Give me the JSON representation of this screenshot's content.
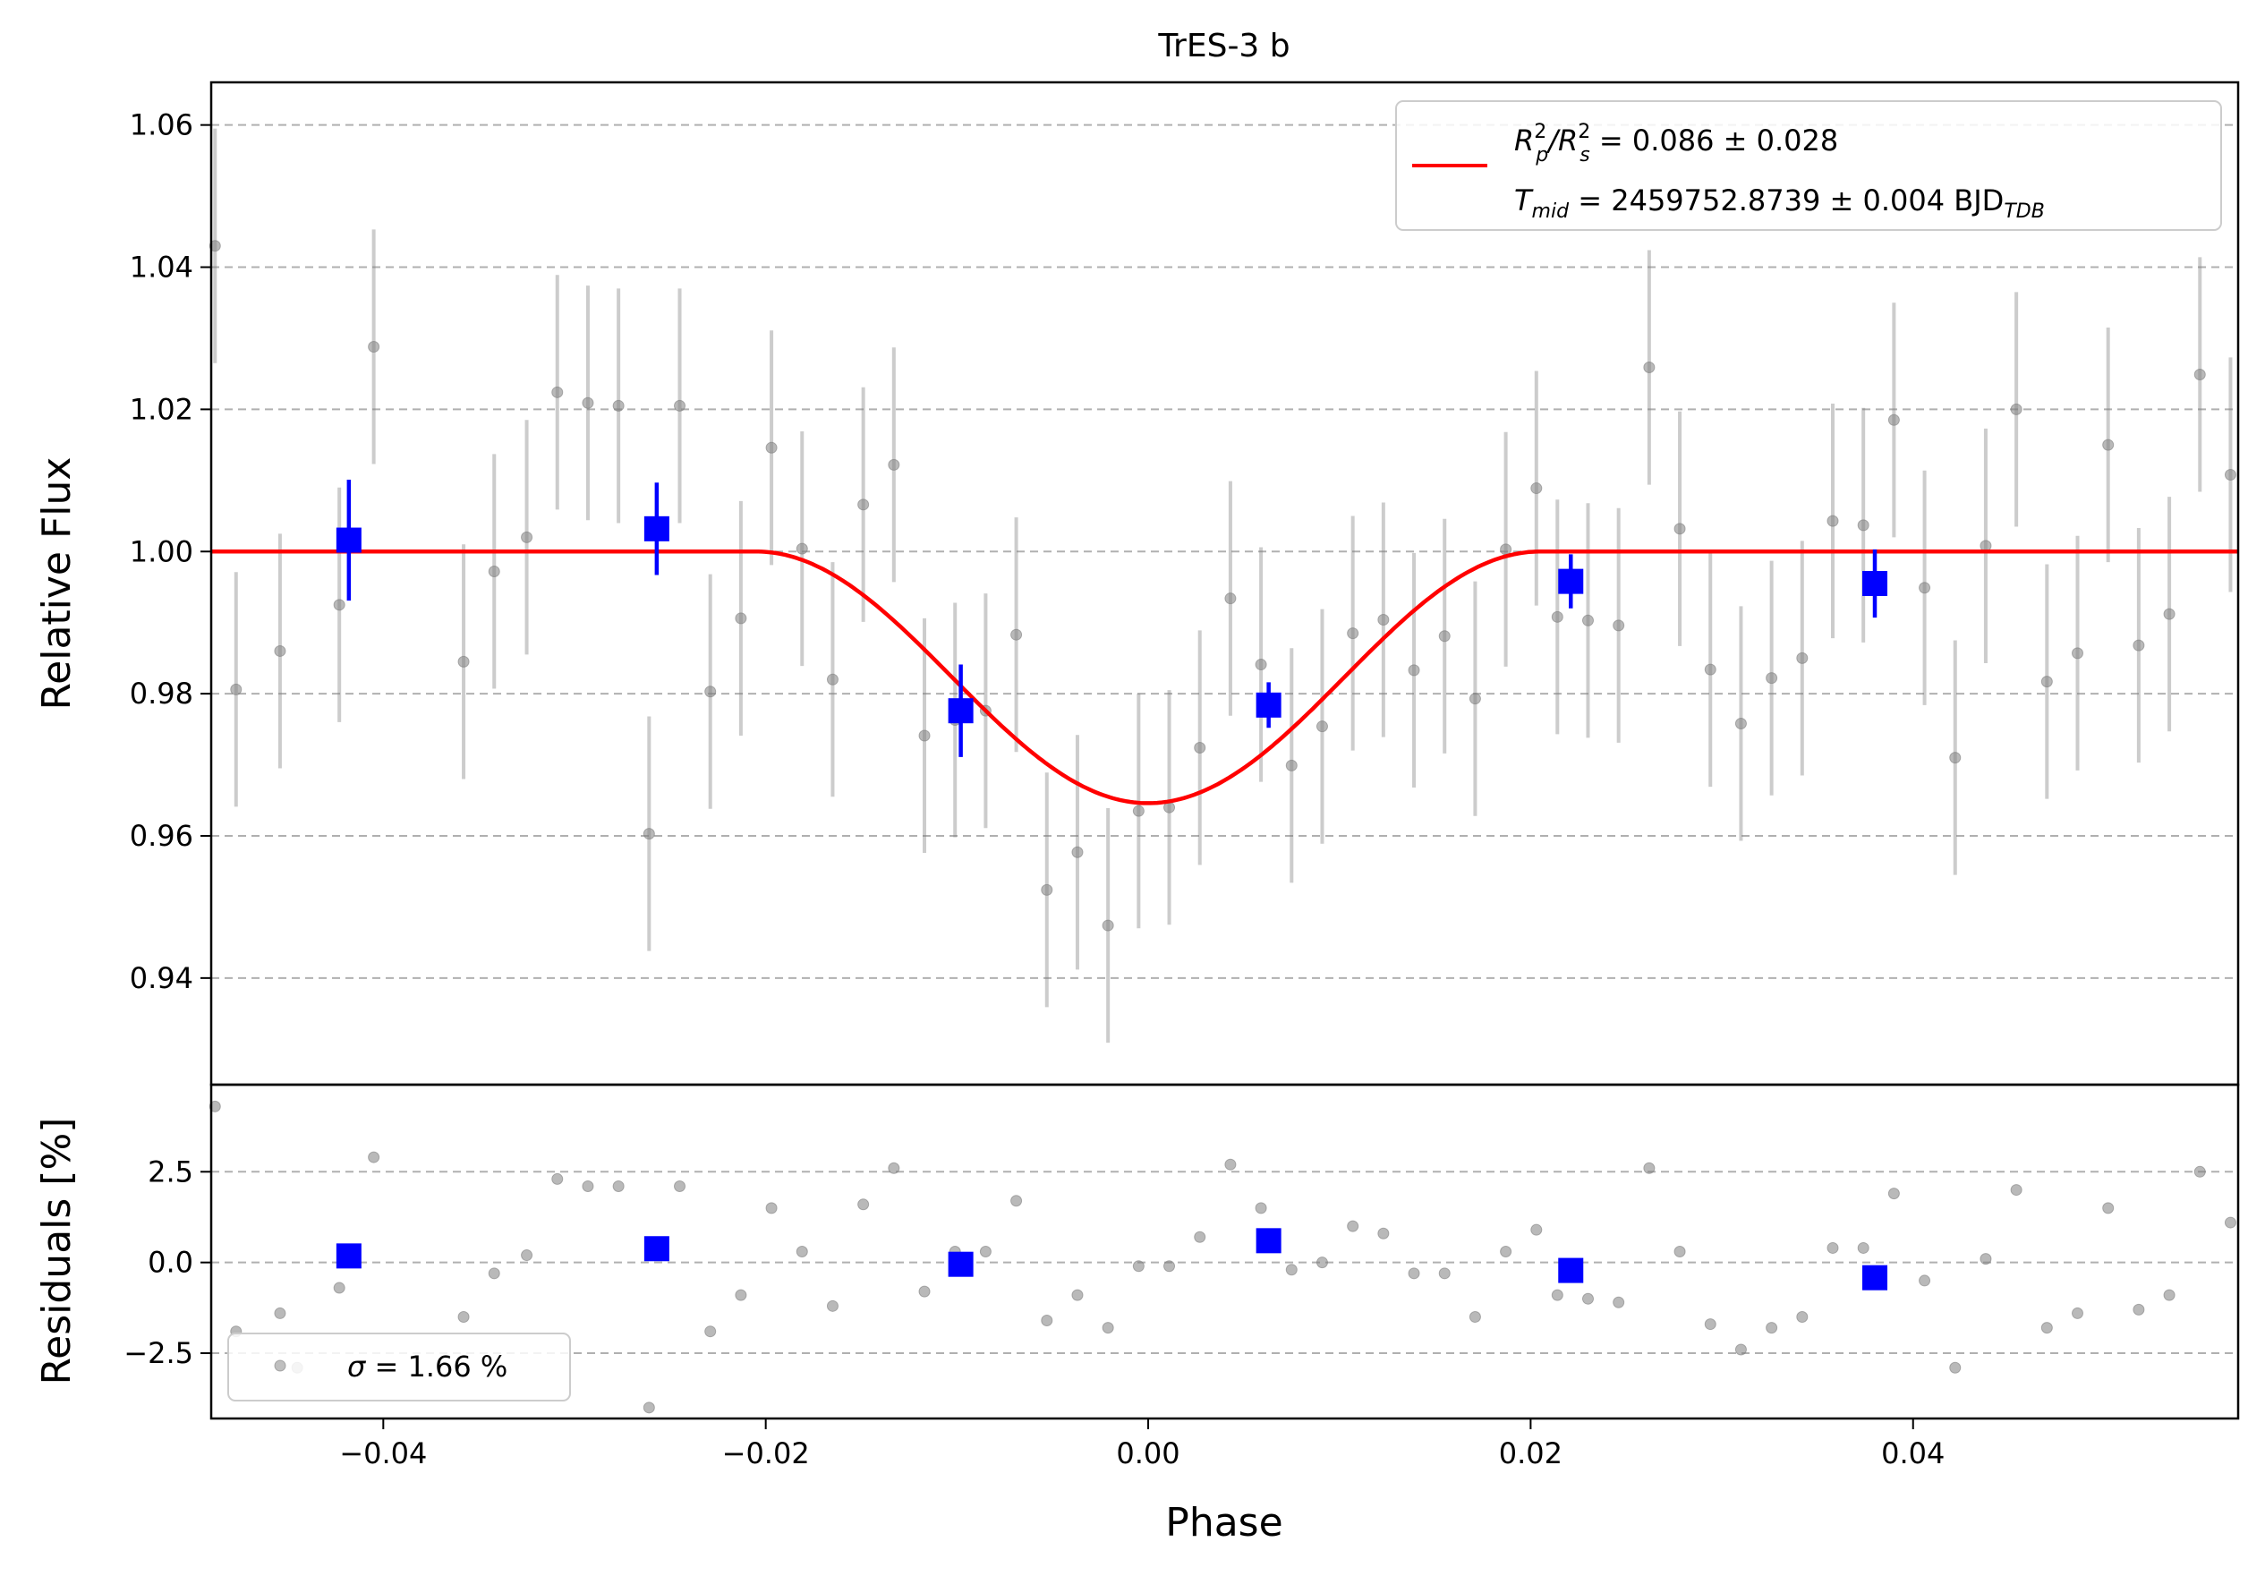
{
  "chart_data": {
    "type": "scatter",
    "title": "TrES-3 b",
    "top": {
      "ylabel": "Relative Flux",
      "ylim": [
        0.925,
        1.066
      ],
      "yticks": [
        0.94,
        0.96,
        0.98,
        1.0,
        1.02,
        1.04,
        1.06
      ],
      "ytick_labels": [
        "0.94",
        "0.96",
        "0.98",
        "1.00",
        "1.02",
        "1.04",
        "1.06"
      ],
      "grid": "horizontal dashed",
      "legend_position": "top-right",
      "legend": {
        "line1_main": "R",
        "line1_a_sup": "2",
        "line1_a_sub": "p",
        "line1_mid": "/R",
        "line1_b_sup": "2",
        "line1_b_sub": "s",
        "line1_value": " = 0.086 ± 0.028",
        "line2_main": "T",
        "line2_sub": "mid",
        "line2_value": " = 2459752.8739 ± 0.004 BJD",
        "line2_unit_sub": "TDB"
      },
      "model_curve": {
        "color": "#ff0000",
        "depth": 0.0354,
        "x": [
          -0.049,
          -0.0205,
          -0.018,
          -0.015,
          -0.012,
          -0.009,
          -0.006,
          -0.003,
          0.0,
          0.003,
          0.006,
          0.009,
          0.012,
          0.015,
          0.018,
          0.0205,
          0.057
        ],
        "y": [
          1.0,
          1.0,
          0.9962,
          0.9888,
          0.9813,
          0.9745,
          0.9693,
          0.9659,
          0.9646,
          0.9659,
          0.9693,
          0.9745,
          0.9813,
          0.9888,
          0.9962,
          1.0,
          1.0
        ]
      },
      "raw_points": {
        "color": "#808080",
        "error": 0.0165,
        "x": [
          -0.0488,
          -0.0477,
          -0.0454,
          -0.0423,
          -0.0405,
          -0.0358,
          -0.0342,
          -0.0325,
          -0.0309,
          -0.0293,
          -0.0277,
          -0.0261,
          -0.0245,
          -0.0229,
          -0.0213,
          -0.0197,
          -0.0181,
          -0.0165,
          -0.0149,
          -0.0133,
          -0.0117,
          -0.0101,
          -0.0085,
          -0.0069,
          -0.0053,
          -0.0037,
          -0.0021,
          -0.0005,
          0.0011,
          0.0027,
          0.0043,
          0.0059,
          0.0075,
          0.0091,
          0.0107,
          0.0123,
          0.0139,
          0.0155,
          0.0171,
          0.0187,
          0.0203,
          0.0214,
          0.023,
          0.0246,
          0.0262,
          0.0278,
          0.0294,
          0.031,
          0.0326,
          0.0342,
          0.0358,
          0.0374,
          0.039,
          0.0406,
          0.0422,
          0.0438,
          0.0454,
          0.047,
          0.0486,
          0.0502,
          0.0518,
          0.0534,
          0.055,
          0.0566
        ],
        "y": [
          1.043,
          0.9806,
          0.986,
          0.9925,
          1.0288,
          0.9845,
          0.9972,
          1.002,
          1.0224,
          1.0209,
          1.0205,
          0.9603,
          1.0205,
          0.9803,
          0.9906,
          1.0146,
          1.0004,
          0.982,
          1.0066,
          1.0122,
          0.9741,
          0.9763,
          0.9776,
          0.9883,
          0.9524,
          0.9577,
          0.9474,
          0.9635,
          0.964,
          0.9724,
          0.9934,
          0.9841,
          0.9699,
          0.9754,
          0.9885,
          0.9904,
          0.9833,
          0.9881,
          0.9793,
          1.0003,
          1.0089,
          0.9908,
          0.9903,
          0.9896,
          1.0259,
          1.0032,
          0.9834,
          0.9758,
          0.9822,
          0.985,
          1.0043,
          1.0037,
          1.0185,
          0.9949,
          0.971,
          1.0008,
          1.02,
          0.9817,
          0.9857,
          1.015,
          0.9868,
          0.9912,
          1.0249,
          1.0108
        ]
      },
      "binned_points": {
        "color": "#0000ff",
        "x": [
          -0.0418,
          -0.0257,
          -0.0098,
          0.0063,
          0.0221,
          0.038
        ],
        "y": [
          1.0016,
          1.0032,
          0.9776,
          0.9784,
          0.9958,
          0.9955
        ],
        "err": [
          0.0085,
          0.0065,
          0.0065,
          0.0032,
          0.0038,
          0.0048
        ]
      }
    },
    "bottom": {
      "ylabel": "Residuals [%]",
      "ylim": [
        -4.3,
        4.9
      ],
      "yticks": [
        -2.5,
        0.0,
        2.5
      ],
      "ytick_labels": [
        "−2.5",
        "0.0",
        "2.5"
      ],
      "grid": "horizontal dashed",
      "legend_position": "bottom-left",
      "legend": {
        "sigma_symbol": "σ",
        "sigma_value": " = 1.66 %"
      },
      "raw_residuals": {
        "color": "#808080",
        "x": [
          -0.0488,
          -0.0477,
          -0.0454,
          -0.0445,
          -0.0423,
          -0.0405,
          -0.0358,
          -0.0342,
          -0.0325,
          -0.0309,
          -0.0293,
          -0.0277,
          -0.0261,
          -0.0245,
          -0.0229,
          -0.0213,
          -0.0197,
          -0.0181,
          -0.0165,
          -0.0149,
          -0.0133,
          -0.0117,
          -0.0101,
          -0.0085,
          -0.0069,
          -0.0053,
          -0.0037,
          -0.0021,
          -0.0005,
          0.0011,
          0.0027,
          0.0043,
          0.0059,
          0.0075,
          0.0091,
          0.0107,
          0.0123,
          0.0139,
          0.0155,
          0.0171,
          0.0187,
          0.0203,
          0.0214,
          0.023,
          0.0246,
          0.0262,
          0.0278,
          0.0294,
          0.031,
          0.0326,
          0.0342,
          0.0358,
          0.0374,
          0.039,
          0.0406,
          0.0422,
          0.0438,
          0.0454,
          0.047,
          0.0486,
          0.0502,
          0.0518,
          0.0534,
          0.055,
          0.0566
        ],
        "y": [
          4.3,
          -1.9,
          -1.4,
          -2.9,
          -0.7,
          2.9,
          -1.5,
          -0.3,
          0.2,
          2.3,
          2.1,
          2.1,
          -4.0,
          2.1,
          -1.9,
          -0.9,
          1.5,
          0.3,
          -1.2,
          1.6,
          2.6,
          -0.8,
          0.3,
          0.3,
          1.7,
          -1.6,
          -0.9,
          -1.8,
          -0.1,
          -0.1,
          0.7,
          2.7,
          1.5,
          -0.2,
          0.0,
          1.0,
          0.8,
          -0.3,
          -0.3,
          -1.5,
          0.3,
          0.9,
          -0.9,
          -1.0,
          -1.1,
          2.6,
          0.3,
          -1.7,
          -2.4,
          -1.8,
          -1.5,
          0.4,
          0.4,
          1.9,
          -0.5,
          -2.9,
          0.1,
          2.0,
          -1.8,
          -1.4,
          1.5,
          -1.3,
          -0.9,
          2.5,
          1.1
        ]
      },
      "binned_residuals": {
        "color": "#0000ff",
        "x": [
          -0.0418,
          -0.0257,
          -0.0098,
          0.0063,
          0.0221,
          0.038
        ],
        "y": [
          0.18,
          0.38,
          -0.05,
          0.6,
          -0.22,
          -0.42
        ]
      }
    },
    "x_axis": {
      "xlabel": "Phase",
      "xlim": [
        -0.049,
        0.057
      ],
      "xticks": [
        -0.04,
        -0.02,
        0.0,
        0.02,
        0.04
      ],
      "xtick_labels": [
        "−0.04",
        "−0.02",
        "0.00",
        "0.02",
        "0.04"
      ]
    }
  }
}
